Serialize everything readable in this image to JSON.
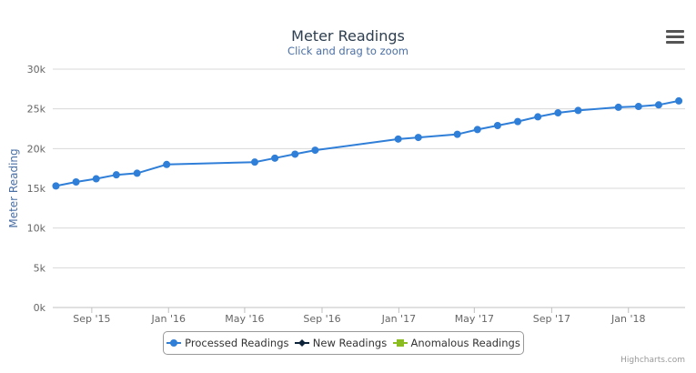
{
  "chart_data": {
    "type": "line",
    "title": "Meter Readings",
    "subtitle": "Click and drag to zoom",
    "ylabel": "Meter Reading",
    "xlabel": "",
    "ylim": [
      0,
      30000
    ],
    "xlim": [
      "2015-07-01",
      "2018-04-01"
    ],
    "y_ticks": [
      0,
      5000,
      10000,
      15000,
      20000,
      25000,
      30000
    ],
    "y_tick_labels": [
      "0k",
      "5k",
      "10k",
      "15k",
      "20k",
      "25k",
      "30k"
    ],
    "x_ticks": [
      "2015-09-01",
      "2016-01-01",
      "2016-05-01",
      "2016-09-01",
      "2017-01-01",
      "2017-05-01",
      "2017-09-01",
      "2018-01-01"
    ],
    "x_tick_labels": [
      "Sep '15",
      "Jan '16",
      "May '16",
      "Sep '16",
      "Jan '17",
      "May '17",
      "Sep '17",
      "Jan '18"
    ],
    "grid": true,
    "legend_position": "bottom-center",
    "series": [
      {
        "name": "Processed Readings",
        "color": "#2f7ed8",
        "marker": "circle",
        "points": [
          {
            "x": "2015-07-06",
            "y": 15300
          },
          {
            "x": "2015-08-07",
            "y": 15800
          },
          {
            "x": "2015-09-08",
            "y": 16200
          },
          {
            "x": "2015-10-10",
            "y": 16700
          },
          {
            "x": "2015-11-12",
            "y": 16900
          },
          {
            "x": "2015-12-29",
            "y": 18000
          },
          {
            "x": "2016-05-17",
            "y": 18300
          },
          {
            "x": "2016-06-18",
            "y": 18800
          },
          {
            "x": "2016-07-20",
            "y": 19300
          },
          {
            "x": "2016-08-21",
            "y": 19800
          },
          {
            "x": "2016-12-31",
            "y": 21200
          },
          {
            "x": "2017-02-01",
            "y": 21400
          },
          {
            "x": "2017-04-04",
            "y": 21800
          },
          {
            "x": "2017-05-06",
            "y": 22400
          },
          {
            "x": "2017-06-07",
            "y": 22900
          },
          {
            "x": "2017-07-09",
            "y": 23400
          },
          {
            "x": "2017-08-10",
            "y": 24000
          },
          {
            "x": "2017-09-11",
            "y": 24500
          },
          {
            "x": "2017-10-13",
            "y": 24800
          },
          {
            "x": "2017-12-16",
            "y": 25200
          },
          {
            "x": "2018-01-17",
            "y": 25300
          },
          {
            "x": "2018-02-18",
            "y": 25500
          },
          {
            "x": "2018-03-22",
            "y": 26000
          }
        ]
      },
      {
        "name": "New Readings",
        "color": "#0d233a",
        "marker": "diamond",
        "points": []
      },
      {
        "name": "Anomalous Readings",
        "color": "#8bbc21",
        "marker": "square",
        "points": []
      }
    ]
  },
  "ui": {
    "menu_icon": "hamburger-menu-icon",
    "credits": "Highcharts.com"
  }
}
